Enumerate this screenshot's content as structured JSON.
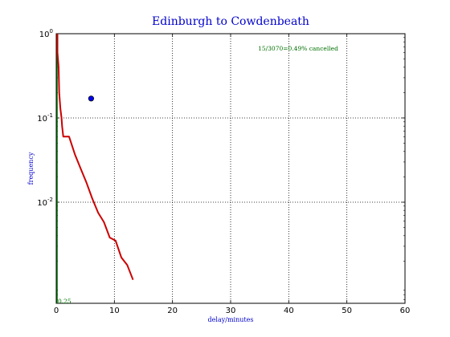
{
  "chart_data": {
    "type": "line",
    "title": "Edinburgh to Cowdenbeath",
    "xlabel": "delay/minutes",
    "ylabel": "frequency",
    "xlim": [
      0,
      60
    ],
    "ylim_log10": [
      -3.2,
      0
    ],
    "y_scale": "log",
    "grid": true,
    "x_ticks": [
      0,
      10,
      20,
      30,
      40,
      50,
      60
    ],
    "x_tick_labels": [
      "0",
      "10",
      "20",
      "30",
      "40",
      "50",
      "60"
    ],
    "y_ticks": [
      1,
      0.1,
      0.01
    ],
    "y_tick_labels": [
      {
        "base": "10",
        "exp": "0"
      },
      {
        "base": "10",
        "exp": "-1"
      },
      {
        "base": "10",
        "exp": "-2"
      }
    ],
    "annotation": "15/3070=0.49% cancelled",
    "corner_label": "0.25",
    "series": [
      {
        "color": "#cc0000",
        "x": [
          0,
          0,
          0.2,
          0.3,
          0.5,
          0.7,
          0.8,
          1,
          2,
          3,
          4,
          5,
          6,
          7,
          8,
          9,
          10,
          11,
          12,
          13
        ],
        "y": [
          1.0,
          0.6,
          0.4,
          0.2,
          0.13,
          0.1,
          0.08,
          0.06,
          0.06,
          0.037,
          0.025,
          0.017,
          0.011,
          0.0075,
          0.0058,
          0.0038,
          0.0035,
          0.0022,
          0.0018,
          0.0012
        ]
      }
    ],
    "marker": {
      "x": 6,
      "y": 0.17,
      "color": "#0000ff"
    },
    "vertical_line": {
      "x": 0,
      "color": "#006400"
    }
  }
}
